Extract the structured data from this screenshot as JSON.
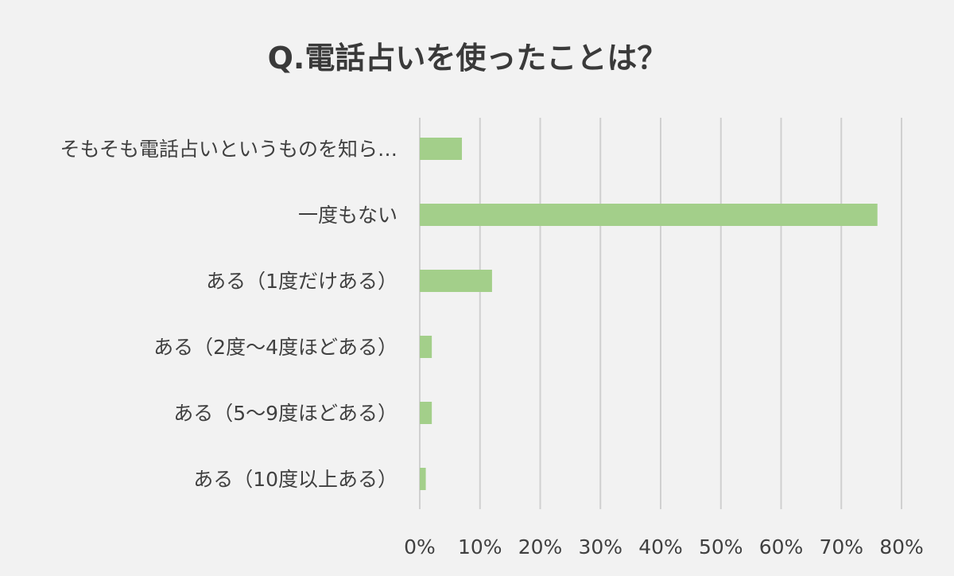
{
  "chart_data": {
    "type": "bar",
    "orientation": "horizontal",
    "title": "Q.電話占いを使ったことは？",
    "categories": [
      "そもそも電話占いというものを知ら…",
      "一度もない",
      "ある（1度だけある）",
      "ある（2度～4度ほどある）",
      "ある（5～9度ほどある）",
      "ある（10度以上ある）"
    ],
    "values": [
      7,
      76,
      12,
      2,
      2,
      1
    ],
    "xlim": [
      0,
      80
    ],
    "xticks": [
      "0%",
      "10%",
      "20%",
      "30%",
      "40%",
      "50%",
      "60%",
      "70%",
      "80%"
    ],
    "grid": true,
    "legend": "none",
    "colors": {
      "bar": "#a3cf8a",
      "grid": "#d0d0d0",
      "text": "#404040",
      "background": "#f2f2f2"
    }
  }
}
